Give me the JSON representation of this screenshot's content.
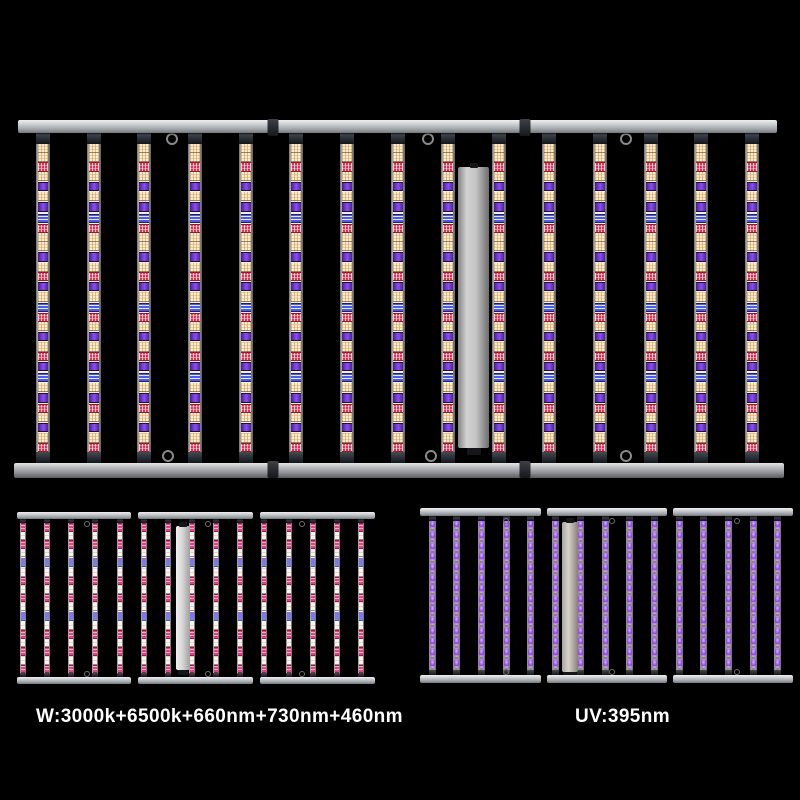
{
  "scene": {
    "description": "Product photo of LED grow light bar fixtures on a black background",
    "background": "#000000"
  },
  "labels": {
    "left": "W:3000k+6500k+660nm+730nm+460nm",
    "right": "UV:395nm"
  },
  "palette": {
    "bg": "#000000",
    "text": "#ffffff",
    "warm": "#f7eed6",
    "warm_dot": "#d98d3a",
    "white": "#f8f5ee",
    "red": "#e23253",
    "purple_hi": "#8a4df0",
    "purple_lo": "#41207e",
    "blue": "#4d5ce2",
    "pink": "#ee3f86",
    "violet": "#8f6fe0",
    "uv_hi": "#e4b8ff",
    "uv_mid": "#a05cf8",
    "uv_lo": "#6c22c8",
    "rail_hi": "#efefef",
    "rail_lo": "#74787c",
    "connector": "#14161a",
    "bar_frame_hi": "#d6d6d6",
    "bar_frame_lo": "#636363",
    "driver_hi": "#d2d2d2",
    "driver_lo": "#6e6e6e"
  },
  "fixtures": {
    "main": {
      "name": "full-spectrum-fixture",
      "bar_count": 15,
      "rail_sections": 3,
      "has_driver_box": true,
      "pattern": [
        "W",
        "W",
        "R",
        "W",
        "P",
        "W",
        "P",
        "B",
        "R",
        "W",
        "W",
        "P",
        "W",
        "R",
        "P",
        "W",
        "B",
        "R",
        "W",
        "P",
        "W",
        "R",
        "P",
        "B",
        "W",
        "P",
        "R",
        "W",
        "P",
        "W",
        "R"
      ]
    },
    "bloom": {
      "name": "bloom-spectrum-fixture",
      "bar_count": 15,
      "rail_sections": 3,
      "has_driver_box": true,
      "pattern": [
        "K",
        "w",
        "K",
        "w",
        "V",
        "w",
        "K",
        "w",
        "K",
        "w",
        "V",
        "w",
        "K",
        "w",
        "K",
        "w",
        "K"
      ]
    },
    "uv": {
      "name": "uv-fixture",
      "bar_count": 15,
      "rail_sections": 3,
      "has_driver_box": true,
      "led_dots_per_bar": 14
    }
  }
}
